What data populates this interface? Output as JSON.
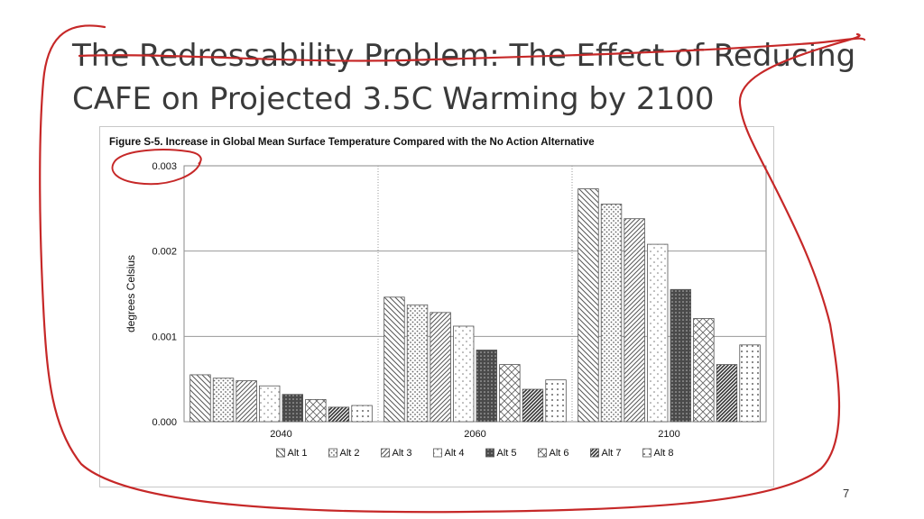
{
  "slide": {
    "title_line1": "The Redressability Problem: The Effect of Reducing",
    "title_line2": "CAFE on Projected 3.5C Warming by 2100",
    "page_number": "7",
    "annotation_color": "#c62828"
  },
  "chart_data": {
    "type": "bar",
    "title": "Figure S-5. Increase in Global Mean Surface Temperature Compared with the No Action Alternative",
    "ylabel": "degrees Celsius",
    "xlabel": "",
    "ylim": [
      0,
      0.003
    ],
    "yticks": [
      "0.000",
      "0.001",
      "0.002",
      "0.003"
    ],
    "categories": [
      "2040",
      "2060",
      "2100"
    ],
    "grid": true,
    "legend_position": "bottom",
    "series": [
      {
        "name": "Alt 1",
        "pattern": "diag-down",
        "values": [
          0.00055,
          0.00146,
          0.00273
        ]
      },
      {
        "name": "Alt 2",
        "pattern": "dots",
        "values": [
          0.00051,
          0.00137,
          0.00255
        ]
      },
      {
        "name": "Alt 3",
        "pattern": "diag-up",
        "values": [
          0.00048,
          0.00128,
          0.00238
        ]
      },
      {
        "name": "Alt 4",
        "pattern": "sparse-dots",
        "values": [
          0.00042,
          0.00112,
          0.00208
        ]
      },
      {
        "name": "Alt 5",
        "pattern": "dark-dots",
        "values": [
          0.00032,
          0.00084,
          0.00155
        ]
      },
      {
        "name": "Alt 6",
        "pattern": "zigzag",
        "values": [
          0.00026,
          0.00067,
          0.00121
        ]
      },
      {
        "name": "Alt 7",
        "pattern": "dark-diag",
        "values": [
          0.00017,
          0.00038,
          0.00067
        ]
      },
      {
        "name": "Alt 8",
        "pattern": "grid-dots",
        "values": [
          0.00019,
          0.00049,
          0.0009
        ]
      }
    ]
  }
}
